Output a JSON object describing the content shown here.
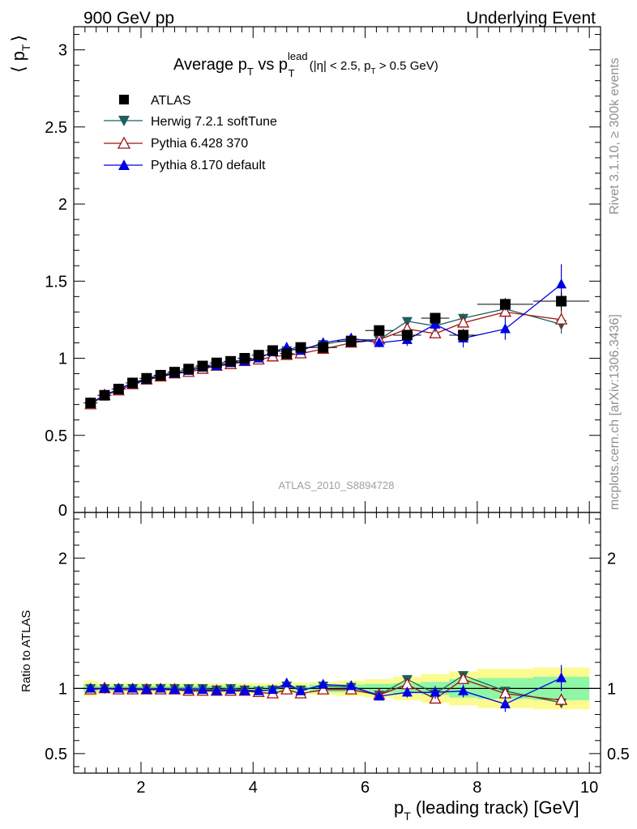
{
  "header": {
    "energy": "900 GeV pp",
    "process": "Underlying Event"
  },
  "title": {
    "prefix": "Average p",
    "sub1": "T",
    "middle": " vs p",
    "sup": "lead",
    "sub2": "T",
    "cuts_a": " (|η| < 2.5, p",
    "cuts_sub": "T",
    "cuts_b": " > 0.5 GeV)"
  },
  "side": {
    "rivet": "Rivet 3.1.10, ≥ 300k events",
    "mcplots": "mcplots.cern.ch [arXiv:1306.3436]"
  },
  "analysis_id": "ATLAS_2010_S8894728",
  "colors": {
    "atlas": "#000000",
    "herwig": "#1f5f5f",
    "pythia6": "#a01010",
    "pythia8": "#0000e6",
    "band_inner": "#8ff7a5",
    "band_outer": "#fbfb8f"
  },
  "chart_data": {
    "type": "line",
    "title": "Average pT vs pT lead (|η| < 2.5, pT > 0.5 GeV)",
    "xlabel": "p",
    "xlabel_sub": "T",
    "xlabel_rest": " (leading track) [GeV]",
    "ylabel": "⟨ p",
    "ylabel_sub": "T",
    "ylabel_close": "⟩",
    "ratio_ylabel": "Ratio to ATLAS",
    "xlim": [
      0.8,
      10.2
    ],
    "ylim": [
      0,
      3.15
    ],
    "ratio_ylim": [
      0.35,
      2.35
    ],
    "x_ticks": [
      "2",
      "4",
      "6",
      "8",
      "10"
    ],
    "y_ticks": [
      "0",
      "0.5",
      "1",
      "1.5",
      "2",
      "2.5",
      "3"
    ],
    "ratio_ticks": [
      "0.5",
      "1",
      "2"
    ],
    "x": [
      1.1,
      1.35,
      1.6,
      1.85,
      2.1,
      2.35,
      2.6,
      2.85,
      3.1,
      3.35,
      3.6,
      3.85,
      4.1,
      4.35,
      4.6,
      4.85,
      5.25,
      5.75,
      6.25,
      6.75,
      7.25,
      7.75,
      8.5,
      9.5
    ],
    "x_err": [
      0.125,
      0.125,
      0.125,
      0.125,
      0.125,
      0.125,
      0.125,
      0.125,
      0.125,
      0.125,
      0.125,
      0.125,
      0.125,
      0.125,
      0.125,
      0.125,
      0.25,
      0.25,
      0.25,
      0.25,
      0.25,
      0.25,
      0.5,
      0.5
    ],
    "series": [
      {
        "name": "ATLAS",
        "marker": "square",
        "values": [
          0.71,
          0.76,
          0.8,
          0.84,
          0.87,
          0.89,
          0.91,
          0.93,
          0.95,
          0.97,
          0.98,
          1.0,
          1.02,
          1.05,
          1.03,
          1.07,
          1.07,
          1.11,
          1.18,
          1.15,
          1.26,
          1.15,
          1.35,
          1.37
        ],
        "errors": [
          0.01,
          0.01,
          0.01,
          0.01,
          0.01,
          0.01,
          0.01,
          0.01,
          0.01,
          0.01,
          0.01,
          0.01,
          0.01,
          0.01,
          0.01,
          0.01,
          0.01,
          0.015,
          0.02,
          0.03,
          0.03,
          0.04,
          0.04,
          0.06
        ]
      },
      {
        "name": "Herwig 7.2.1 softTune",
        "marker": "triangle-down",
        "values": [
          0.71,
          0.76,
          0.8,
          0.84,
          0.87,
          0.89,
          0.91,
          0.93,
          0.95,
          0.96,
          0.98,
          0.99,
          1.0,
          1.04,
          1.05,
          1.06,
          1.09,
          1.12,
          1.12,
          1.24,
          1.21,
          1.26,
          1.32,
          1.22
        ],
        "errors": [
          0.005,
          0.005,
          0.005,
          0.005,
          0.005,
          0.005,
          0.005,
          0.005,
          0.005,
          0.005,
          0.005,
          0.005,
          0.005,
          0.01,
          0.01,
          0.01,
          0.01,
          0.015,
          0.02,
          0.02,
          0.03,
          0.03,
          0.04,
          0.06
        ]
      },
      {
        "name": "Pythia 6.428 370",
        "marker": "triangle-up-open",
        "values": [
          0.7,
          0.76,
          0.79,
          0.83,
          0.86,
          0.88,
          0.9,
          0.91,
          0.93,
          0.95,
          0.96,
          0.98,
          0.99,
          1.01,
          1.02,
          1.03,
          1.06,
          1.1,
          1.12,
          1.19,
          1.16,
          1.23,
          1.3,
          1.25
        ],
        "errors": [
          0.005,
          0.005,
          0.005,
          0.005,
          0.005,
          0.005,
          0.005,
          0.005,
          0.005,
          0.005,
          0.005,
          0.005,
          0.005,
          0.01,
          0.01,
          0.01,
          0.01,
          0.015,
          0.02,
          0.02,
          0.03,
          0.03,
          0.04,
          0.06
        ]
      },
      {
        "name": "Pythia 8.170 default",
        "marker": "triangle-up",
        "values": [
          0.71,
          0.76,
          0.8,
          0.84,
          0.86,
          0.89,
          0.9,
          0.92,
          0.94,
          0.95,
          0.97,
          0.98,
          1.0,
          1.04,
          1.07,
          1.05,
          1.1,
          1.13,
          1.1,
          1.12,
          1.22,
          1.13,
          1.19,
          1.48
        ],
        "errors": [
          0.005,
          0.005,
          0.005,
          0.005,
          0.005,
          0.005,
          0.005,
          0.005,
          0.005,
          0.005,
          0.005,
          0.005,
          0.005,
          0.01,
          0.015,
          0.015,
          0.02,
          0.03,
          0.03,
          0.04,
          0.05,
          0.06,
          0.07,
          0.13
        ]
      }
    ],
    "ratio_series": [
      {
        "name": "Herwig 7.2.1 softTune",
        "values": [
          1.0,
          1.0,
          1.0,
          1.0,
          1.0,
          1.0,
          1.0,
          1.0,
          1.0,
          0.99,
          1.0,
          0.99,
          0.98,
          0.99,
          1.02,
          0.99,
          1.02,
          1.01,
          0.95,
          1.07,
          0.96,
          1.1,
          0.98,
          0.89
        ],
        "errors": [
          0.005,
          0.005,
          0.005,
          0.005,
          0.005,
          0.005,
          0.005,
          0.005,
          0.005,
          0.005,
          0.005,
          0.005,
          0.005,
          0.01,
          0.01,
          0.01,
          0.01,
          0.015,
          0.02,
          0.02,
          0.03,
          0.03,
          0.03,
          0.04
        ]
      },
      {
        "name": "Pythia 6.428 370",
        "values": [
          0.99,
          1.0,
          0.99,
          0.99,
          0.99,
          0.99,
          0.99,
          0.98,
          0.98,
          0.98,
          0.98,
          0.98,
          0.97,
          0.96,
          0.99,
          0.96,
          0.99,
          0.99,
          0.95,
          1.03,
          0.92,
          1.07,
          0.96,
          0.91
        ],
        "errors": [
          0.005,
          0.005,
          0.005,
          0.005,
          0.005,
          0.005,
          0.005,
          0.005,
          0.005,
          0.005,
          0.005,
          0.005,
          0.005,
          0.01,
          0.01,
          0.01,
          0.01,
          0.015,
          0.02,
          0.02,
          0.03,
          0.03,
          0.03,
          0.04
        ]
      },
      {
        "name": "Pythia 8.170 default",
        "values": [
          1.0,
          1.0,
          1.0,
          1.0,
          0.99,
          1.0,
          0.99,
          0.99,
          0.99,
          0.98,
          0.99,
          0.98,
          0.98,
          0.99,
          1.04,
          0.98,
          1.03,
          1.02,
          0.94,
          0.97,
          0.97,
          0.98,
          0.88,
          1.08
        ],
        "errors": [
          0.005,
          0.005,
          0.005,
          0.005,
          0.005,
          0.005,
          0.005,
          0.005,
          0.005,
          0.005,
          0.005,
          0.005,
          0.005,
          0.01,
          0.015,
          0.015,
          0.02,
          0.03,
          0.03,
          0.04,
          0.05,
          0.05,
          0.06,
          0.1
        ]
      }
    ],
    "ratio_band_inner": [
      0.03,
      0.02,
      0.02,
      0.02,
      0.02,
      0.02,
      0.02,
      0.02,
      0.02,
      0.02,
      0.02,
      0.02,
      0.02,
      0.02,
      0.02,
      0.02,
      0.03,
      0.03,
      0.035,
      0.04,
      0.05,
      0.07,
      0.08,
      0.09
    ],
    "ratio_band_outer": [
      0.06,
      0.04,
      0.04,
      0.04,
      0.04,
      0.04,
      0.04,
      0.04,
      0.04,
      0.04,
      0.04,
      0.04,
      0.04,
      0.04,
      0.045,
      0.045,
      0.05,
      0.06,
      0.07,
      0.09,
      0.11,
      0.13,
      0.15,
      0.16
    ]
  }
}
